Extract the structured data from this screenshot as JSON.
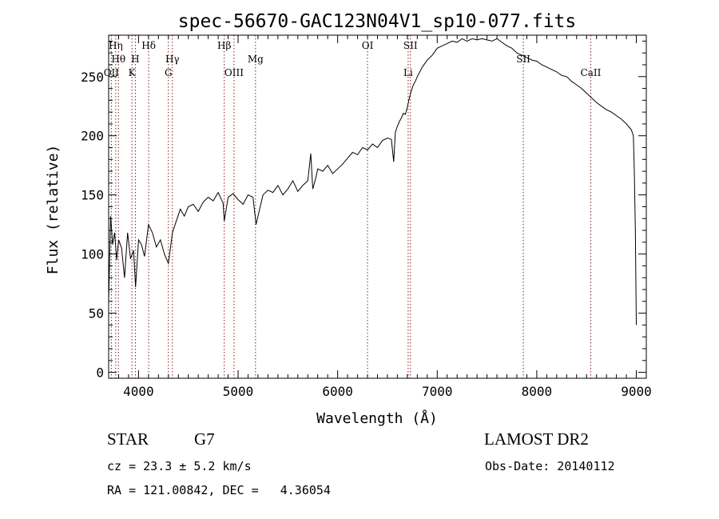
{
  "chart_data": {
    "type": "line",
    "title": "spec-56670-GAC123N04V1_sp10-077.fits",
    "xlabel": "Wavelength (Å)",
    "ylabel": "Flux (relative)",
    "xlim": [
      3700,
      9100
    ],
    "ylim": [
      -5,
      285
    ],
    "xticks": [
      4000,
      5000,
      6000,
      7000,
      8000,
      9000
    ],
    "yticks": [
      0,
      50,
      100,
      150,
      200,
      250
    ],
    "grid": false,
    "line_color": "#000000",
    "marker_color": "#8b1a1a",
    "series": [
      {
        "x": [
          3700,
          3720,
          3740,
          3760,
          3780,
          3800,
          3830,
          3860,
          3890,
          3920,
          3950,
          3970,
          4000,
          4030,
          4060,
          4100,
          4140,
          4180,
          4220,
          4260,
          4300,
          4340,
          4380,
          4420,
          4460,
          4500,
          4550,
          4600,
          4650,
          4700,
          4750,
          4800,
          4850,
          4861,
          4900,
          4950,
          5000,
          5050,
          5100,
          5150,
          5180,
          5250,
          5300,
          5350,
          5400,
          5450,
          5500,
          5550,
          5600,
          5650,
          5700,
          5730,
          5750,
          5780,
          5800,
          5850,
          5900,
          5950,
          6000,
          6050,
          6100,
          6150,
          6200,
          6250,
          6300,
          6350,
          6400,
          6450,
          6500,
          6540,
          6563,
          6580,
          6600,
          6620,
          6640,
          6660,
          6680,
          6700,
          6720,
          6740,
          6760,
          6780,
          6800,
          6850,
          6900,
          6950,
          7000,
          7050,
          7100,
          7150,
          7200,
          7250,
          7300,
          7350,
          7400,
          7450,
          7500,
          7550,
          7600,
          7650,
          7700,
          7750,
          7800,
          7850,
          7900,
          7950,
          8000,
          8050,
          8100,
          8150,
          8200,
          8250,
          8300,
          8350,
          8400,
          8450,
          8500,
          8550,
          8600,
          8650,
          8700,
          8750,
          8800,
          8850,
          8900,
          8950,
          8970,
          8980,
          8990,
          9000
        ],
        "y": [
          60,
          132,
          108,
          118,
          95,
          112,
          105,
          80,
          118,
          96,
          103,
          72,
          112,
          108,
          98,
          125,
          118,
          106,
          112,
          100,
          92,
          118,
          128,
          138,
          132,
          140,
          142,
          136,
          144,
          148,
          145,
          152,
          143,
          128,
          148,
          151,
          146,
          142,
          150,
          148,
          125,
          150,
          154,
          152,
          158,
          150,
          155,
          162,
          153,
          158,
          162,
          185,
          155,
          164,
          172,
          170,
          175,
          168,
          172,
          176,
          181,
          186,
          184,
          190,
          188,
          193,
          190,
          196,
          198,
          197,
          178,
          203,
          208,
          212,
          215,
          219,
          218,
          224,
          232,
          238,
          243,
          246,
          250,
          258,
          264,
          268,
          274,
          276,
          278,
          280,
          279,
          282,
          280,
          282,
          281,
          282,
          281,
          280,
          282,
          279,
          276,
          274,
          270,
          268,
          266,
          264,
          263,
          260,
          258,
          256,
          254,
          251,
          250,
          246,
          243,
          240,
          236,
          232,
          228,
          225,
          222,
          220,
          217,
          214,
          210,
          205,
          200,
          170,
          120,
          40
        ]
      }
    ],
    "line_markers": [
      {
        "wl": 3727,
        "label": "OII",
        "row": 3
      },
      {
        "wl": 3771,
        "label": "Hη",
        "row": 1
      },
      {
        "wl": 3798,
        "label": "Hθ",
        "row": 2
      },
      {
        "wl": 3934,
        "label": "K",
        "row": 3
      },
      {
        "wl": 3968,
        "label": "H",
        "row": 2
      },
      {
        "wl": 4102,
        "label": "Hδ",
        "row": 1
      },
      {
        "wl": 4300,
        "label": "G",
        "row": 3
      },
      {
        "wl": 4340,
        "label": "Hγ",
        "row": 2
      },
      {
        "wl": 4861,
        "label": "Hβ",
        "row": 1
      },
      {
        "wl": 4959,
        "label": "OIII",
        "row": 3
      },
      {
        "wl": 5175,
        "label": "Mg",
        "row": 2
      },
      {
        "wl": 6300,
        "label": "OI",
        "row": 1
      },
      {
        "wl": 6708,
        "label": "Li",
        "row": 3
      },
      {
        "wl": 6731,
        "label": "SII",
        "row": 1
      },
      {
        "wl": 7865,
        "label": "SII",
        "row": 2
      },
      {
        "wl": 8542,
        "label": "CaII",
        "row": 3
      }
    ]
  },
  "info": {
    "class_label": "STAR",
    "subclass_label": "G7",
    "survey_label": "LAMOST DR2",
    "redshift_text": "cz = 23.3 ± 5.2 km/s",
    "obs_date_text": "Obs-Date: 20140112",
    "coords_text": "RA = 121.00842, DEC =   4.36054"
  }
}
